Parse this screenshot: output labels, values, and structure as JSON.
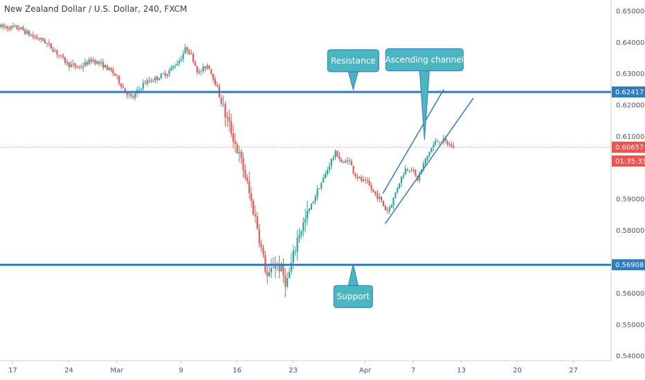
{
  "header": {
    "title": "New Zealand Dollar / U.S. Dollar, 240, FXCM"
  },
  "colors": {
    "up": "#26a69a",
    "down": "#ef5350",
    "level": "#2f7bbf",
    "channel": "#2f7bbf",
    "callout": "#4bb5c1",
    "price_line": "#e57373",
    "axis_text": "#50535e",
    "axis_line": "#cccccc"
  },
  "chart_data": {
    "type": "candlestick",
    "title": "New Zealand Dollar / U.S. Dollar, 240, FXCM",
    "xlabel": "",
    "ylabel": "",
    "ylim": [
      0.5385,
      0.6535
    ],
    "y_ticks": [
      "0.65000",
      "0.64000",
      "0.63000",
      "0.62000",
      "0.61000",
      "0.59000",
      "0.58000",
      "0.56000",
      "0.55000",
      "0.54000"
    ],
    "x_ticks": [
      "17",
      "24",
      "Mar",
      "9",
      "16",
      "23",
      "Apr",
      "7",
      "13",
      "20",
      "27"
    ],
    "x_tick_days": [
      0,
      7,
      13,
      21,
      28,
      35,
      44,
      50,
      56,
      63,
      70
    ],
    "x_range_days": [
      -1.6,
      74.7
    ],
    "last_price": "0.60657",
    "countdown": "01:35:33",
    "levels": [
      {
        "name": "Resistance",
        "price": 0.62417,
        "label": "0.62417"
      },
      {
        "name": "Support",
        "price": 0.56908,
        "label": "0.56908"
      }
    ],
    "channel": {
      "label": "Ascending channel",
      "upper": [
        [
          46.2,
          0.5918
        ],
        [
          53.8,
          0.625
        ]
      ],
      "lower": [
        [
          46.5,
          0.5822
        ],
        [
          57.5,
          0.6222
        ]
      ]
    },
    "annotations": [
      {
        "text": "Resistance",
        "anchor": [
          42.5,
          0.6249
        ]
      },
      {
        "text": "Ascending channel",
        "anchor": [
          51.4,
          0.6089
        ]
      },
      {
        "text": "Support",
        "anchor": [
          42.5,
          0.5693
        ]
      }
    ],
    "price_path": [
      [
        -1.6,
        0.645
      ],
      [
        1.0,
        0.6445
      ],
      [
        2.5,
        0.642
      ],
      [
        4.0,
        0.6405
      ],
      [
        5.5,
        0.637
      ],
      [
        7.0,
        0.633
      ],
      [
        8.5,
        0.632
      ],
      [
        10.0,
        0.6345
      ],
      [
        11.5,
        0.6325
      ],
      [
        12.8,
        0.63
      ],
      [
        14.0,
        0.625
      ],
      [
        15.0,
        0.622
      ],
      [
        16.5,
        0.627
      ],
      [
        18.0,
        0.6285
      ],
      [
        19.5,
        0.6305
      ],
      [
        21.0,
        0.6345
      ],
      [
        21.8,
        0.6385
      ],
      [
        22.6,
        0.635
      ],
      [
        23.3,
        0.63
      ],
      [
        24.5,
        0.633
      ],
      [
        25.5,
        0.6265
      ],
      [
        26.5,
        0.618
      ],
      [
        27.5,
        0.611
      ],
      [
        28.3,
        0.6045
      ],
      [
        29.0,
        0.599
      ],
      [
        29.8,
        0.59
      ],
      [
        30.6,
        0.582
      ],
      [
        31.3,
        0.572
      ],
      [
        32.0,
        0.564
      ],
      [
        32.8,
        0.57
      ],
      [
        33.5,
        0.568
      ],
      [
        34.3,
        0.563
      ],
      [
        35.0,
        0.57
      ],
      [
        35.8,
        0.579
      ],
      [
        36.6,
        0.583
      ],
      [
        37.4,
        0.588
      ],
      [
        38.2,
        0.593
      ],
      [
        39.0,
        0.597
      ],
      [
        39.8,
        0.602
      ],
      [
        40.5,
        0.605
      ],
      [
        41.3,
        0.601
      ],
      [
        42.0,
        0.603
      ],
      [
        42.8,
        0.598
      ],
      [
        43.6,
        0.596
      ],
      [
        44.4,
        0.595
      ],
      [
        45.2,
        0.592
      ],
      [
        46.0,
        0.59
      ],
      [
        46.8,
        0.586
      ],
      [
        47.5,
        0.589
      ],
      [
        48.3,
        0.595
      ],
      [
        49.1,
        0.5995
      ],
      [
        49.9,
        0.6
      ],
      [
        50.6,
        0.596
      ],
      [
        51.4,
        0.601
      ],
      [
        52.2,
        0.6055
      ],
      [
        53.0,
        0.6085
      ],
      [
        53.8,
        0.6088
      ],
      [
        54.5,
        0.6075
      ],
      [
        55.0,
        0.6066
      ]
    ]
  }
}
